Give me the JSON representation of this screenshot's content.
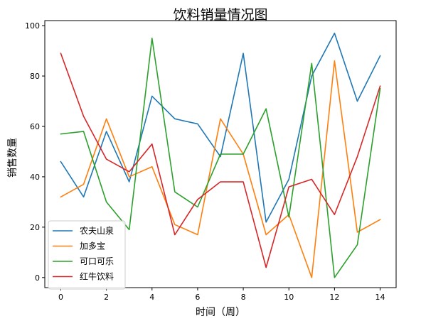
{
  "chart_data": {
    "type": "line",
    "title": "饮料销量情况图",
    "xlabel": "时间（周）",
    "ylabel": "销售数量",
    "x": [
      0,
      1,
      2,
      3,
      4,
      5,
      6,
      7,
      8,
      9,
      10,
      11,
      12,
      13,
      14
    ],
    "xlim": [
      -0.7,
      14.7
    ],
    "ylim": [
      -4,
      102
    ],
    "xticks": [
      "0",
      "2",
      "4",
      "6",
      "8",
      "10",
      "12",
      "14"
    ],
    "yticks": [
      "0",
      "20",
      "40",
      "60",
      "80",
      "100"
    ],
    "grid": false,
    "legend_position": "bottom-left",
    "series": [
      {
        "name": "农夫山泉",
        "color": "#1f77b4",
        "values": [
          46,
          32,
          58,
          38,
          72,
          63,
          61,
          48,
          89,
          22,
          39,
          80,
          97,
          70,
          88
        ]
      },
      {
        "name": "加多宝",
        "color": "#ff7f0e",
        "values": [
          32,
          37,
          63,
          40,
          44,
          21,
          17,
          63,
          49,
          17,
          25,
          0,
          86,
          18,
          23
        ]
      },
      {
        "name": "可口可乐",
        "color": "#2ca02c",
        "values": [
          57,
          58,
          30,
          19,
          95,
          34,
          28,
          49,
          49,
          67,
          24,
          85,
          0,
          13,
          75
        ]
      },
      {
        "name": "红牛饮料",
        "color": "#d62728",
        "values": [
          89,
          64,
          47,
          42,
          53,
          17,
          31,
          38,
          38,
          4,
          36,
          39,
          25,
          48,
          76
        ]
      }
    ]
  }
}
